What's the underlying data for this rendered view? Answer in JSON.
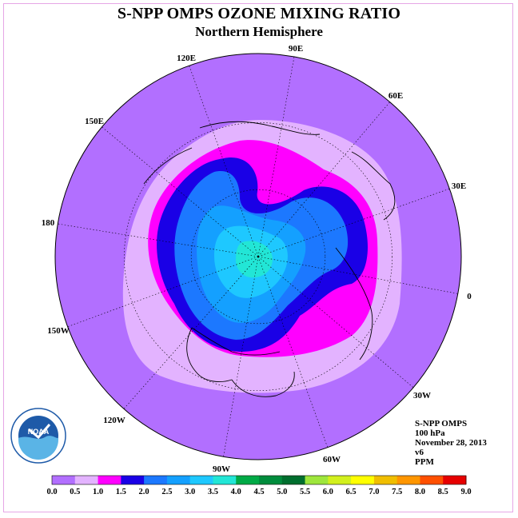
{
  "title": "S-NPP OMPS OZONE MIXING RATIO",
  "subtitle": "Northern Hemisphere",
  "longitude_labels": [
    "90E",
    "60E",
    "30E",
    "0",
    "30W",
    "60W",
    "90W",
    "120W",
    "150W",
    "180",
    "150E",
    "120E"
  ],
  "info": {
    "instrument": "S-NPP OMPS",
    "level": "100 hPa",
    "date": "November 28, 2013",
    "version": "v6",
    "units": "PPM"
  },
  "colorbar": {
    "ticks": [
      "0.0",
      "0.5",
      "1.0",
      "1.5",
      "2.0",
      "2.5",
      "3.0",
      "3.5",
      "4.0",
      "4.5",
      "5.0",
      "5.5",
      "6.0",
      "6.5",
      "7.0",
      "7.5",
      "8.0",
      "8.5",
      "9.0"
    ],
    "colors": [
      "#b26fff",
      "#e3b3ff",
      "#ff00ff",
      "#1a00e6",
      "#1c78ff",
      "#14a0ff",
      "#1ec8ff",
      "#22e6d6",
      "#00aa46",
      "#008c3c",
      "#006e2e",
      "#9ee63c",
      "#d2f01e",
      "#ffff00",
      "#f0be00",
      "#ff9600",
      "#ff5000",
      "#e60000",
      "#8c5028"
    ]
  },
  "colors": {
    "background_purple": "#b26fff",
    "light_purple": "#e3b3ff",
    "magenta": "#ff00ff",
    "dark_blue": "#1a00e6",
    "blue": "#1c78ff",
    "sky": "#14a0ff",
    "cyan": "#1ec8ff",
    "aqua": "#22e6d6"
  },
  "logo_text": "NOAA"
}
